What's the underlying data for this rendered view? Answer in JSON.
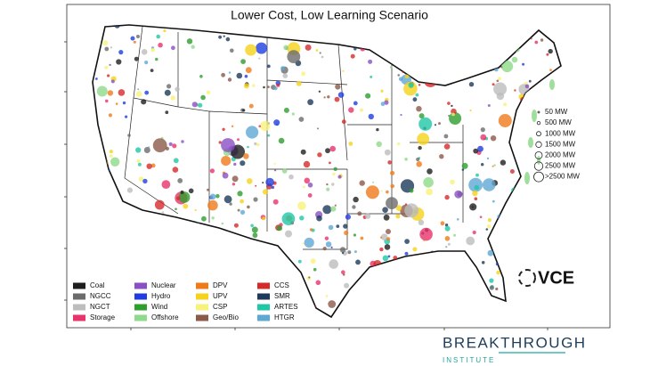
{
  "title": "Lower Cost, Low Learning Scenario",
  "legend": [
    {
      "label": "Coal",
      "color": "#1e1e1e"
    },
    {
      "label": "NGCC",
      "color": "#6b6b6b"
    },
    {
      "label": "NGCT",
      "color": "#bdbdbd"
    },
    {
      "label": "Storage",
      "color": "#e8336b"
    },
    {
      "label": "Nuclear",
      "color": "#8a4fc4"
    },
    {
      "label": "Hydro",
      "color": "#1f3de0"
    },
    {
      "label": "Wind",
      "color": "#2e9e2e"
    },
    {
      "label": "Offshore",
      "color": "#8fd98a"
    },
    {
      "label": "DPV",
      "color": "#f07a1a"
    },
    {
      "label": "UPV",
      "color": "#f5d31a"
    },
    {
      "label": "CSP",
      "color": "#f8f27a"
    },
    {
      "label": "Geo/Bio",
      "color": "#8b5a4a"
    },
    {
      "label": "CCS",
      "color": "#d42a2a"
    },
    {
      "label": "SMR",
      "color": "#1d3a5a"
    },
    {
      "label": "ARTES",
      "color": "#1fc7a8"
    },
    {
      "label": "HTGR",
      "color": "#5fa8d4"
    }
  ],
  "size_legend": [
    "50 MW",
    "500 MW",
    "1000 MW",
    "1500 MW",
    "2000 MW",
    "2500 MW",
    ">2500 MW"
  ],
  "vce_logo": "VCE",
  "footer_logo": {
    "line1": "BREAKTHROUGH",
    "line2": "INSTITUTE"
  }
}
